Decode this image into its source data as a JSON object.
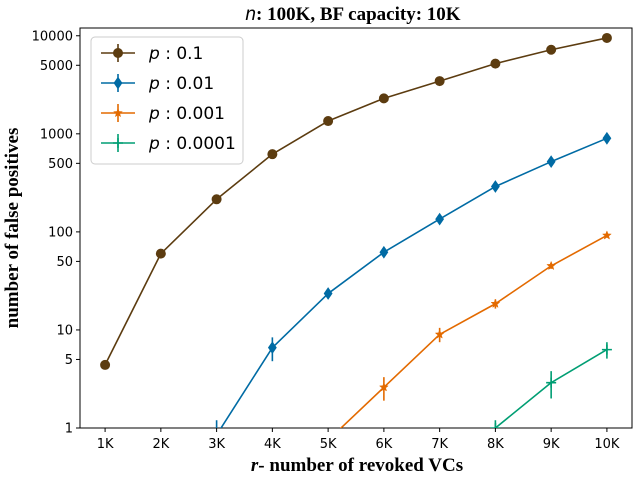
{
  "chart_data": {
    "type": "line",
    "title": {
      "italic": "n",
      "rest": ": 100K, BF capacity: 10K"
    },
    "xlabel": {
      "italic": "r",
      "rest": "- number of revoked VCs"
    },
    "ylabel": "number of false positives",
    "yscale": "log",
    "ylim": [
      1,
      12000
    ],
    "yticks": [
      1,
      5,
      10,
      50,
      100,
      500,
      1000,
      5000,
      10000
    ],
    "ytick_labels": [
      "1",
      "5",
      "10",
      "50",
      "100",
      "500",
      "1000",
      "5000",
      "10000"
    ],
    "x": [
      1,
      2,
      3,
      4,
      5,
      6,
      7,
      8,
      9,
      10
    ],
    "xtick_labels": [
      "1K",
      "2K",
      "3K",
      "4K",
      "5K",
      "6K",
      "7K",
      "8K",
      "9K",
      "10K"
    ],
    "grid": false,
    "legend_position": "top-left",
    "series": [
      {
        "name": "0.1",
        "legend_prefix": "p",
        "color": "#5c3c10",
        "marker": "circle",
        "values": [
          4.4,
          60,
          215,
          620,
          1350,
          2300,
          3450,
          5200,
          7200,
          9500
        ],
        "errors": [
          0.2,
          1.5,
          4,
          10,
          18,
          25,
          30,
          40,
          50,
          60
        ]
      },
      {
        "name": "0.01",
        "legend_prefix": "p",
        "color": "#006ba4",
        "marker": "diamond",
        "values": [
          null,
          null,
          0.85,
          6.6,
          23.5,
          62,
          135,
          290,
          520,
          900
        ],
        "errors": [
          null,
          null,
          0.35,
          1.8,
          1.5,
          4,
          10,
          20,
          30,
          40
        ]
      },
      {
        "name": "0.001",
        "legend_prefix": "p",
        "color": "#e36a00",
        "marker": "star",
        "values": [
          null,
          null,
          null,
          null,
          0.75,
          2.6,
          9,
          18.5,
          45,
          92
        ],
        "errors": [
          null,
          null,
          null,
          null,
          0.2,
          0.7,
          1.5,
          2,
          3,
          4
        ]
      },
      {
        "name": "0.0001",
        "legend_prefix": "p",
        "color": "#009e73",
        "marker": "plus",
        "values": [
          null,
          null,
          null,
          null,
          null,
          null,
          null,
          1.0,
          2.9,
          6.3
        ],
        "errors": [
          null,
          null,
          null,
          null,
          null,
          null,
          null,
          0.2,
          0.9,
          1.2
        ]
      }
    ]
  }
}
